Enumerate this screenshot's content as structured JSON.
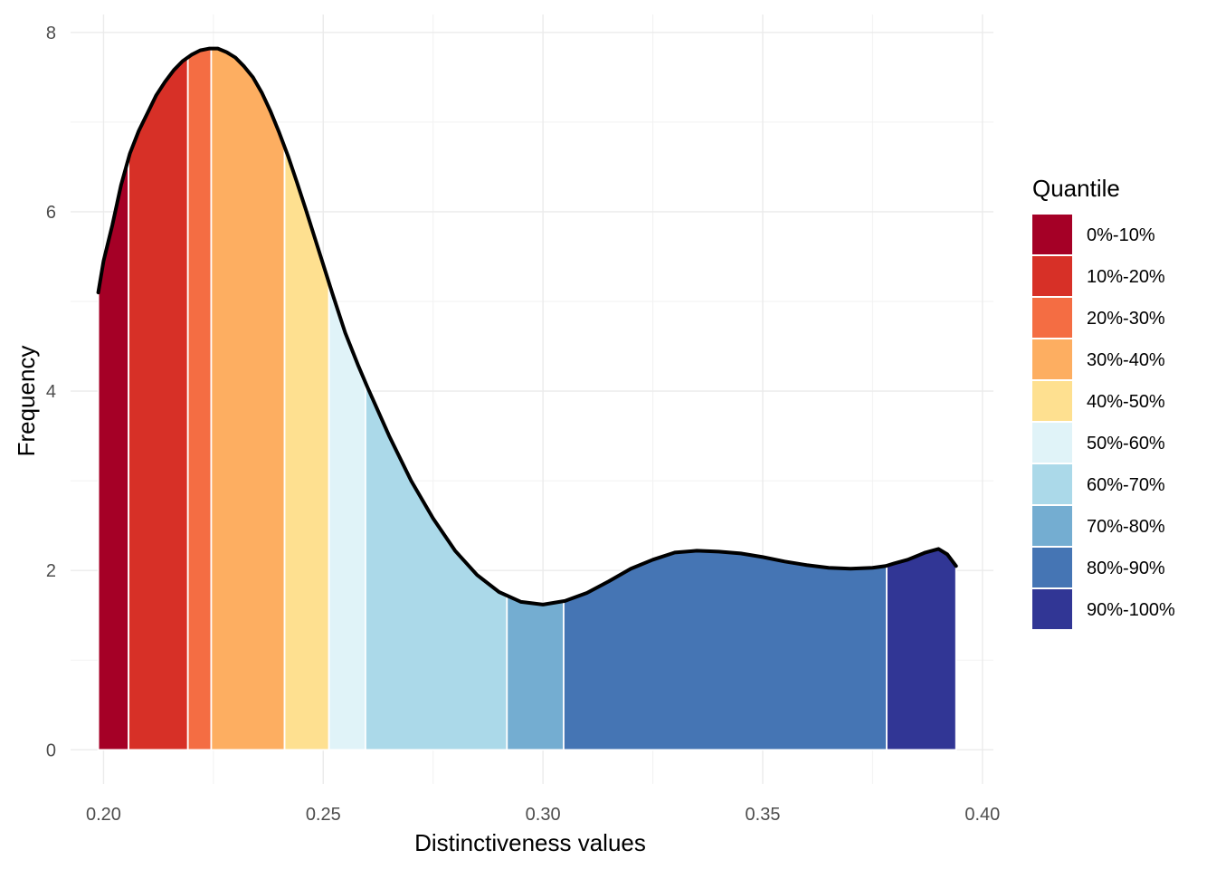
{
  "chart_data": {
    "type": "area",
    "title": "",
    "xlabel": "Distinctiveness values",
    "ylabel": "Frequency",
    "xlim": [
      0.1925,
      0.4025
    ],
    "ylim": [
      -0.38,
      8.2
    ],
    "x_ticks": [
      0.2,
      0.25,
      0.3,
      0.35,
      0.4
    ],
    "x_tick_labels": [
      "0.20",
      "0.25",
      "0.30",
      "0.35",
      "0.40"
    ],
    "y_ticks": [
      0,
      2,
      4,
      6,
      8
    ],
    "y_tick_labels": [
      "0",
      "2",
      "4",
      "6",
      "8"
    ],
    "grid": true,
    "legend_position": "right",
    "legend_title": "Quantile",
    "density_curve": {
      "x": [
        0.1988,
        0.2,
        0.202,
        0.204,
        0.206,
        0.208,
        0.21,
        0.212,
        0.214,
        0.216,
        0.218,
        0.22,
        0.222,
        0.224,
        0.226,
        0.228,
        0.23,
        0.232,
        0.234,
        0.236,
        0.238,
        0.24,
        0.242,
        0.244,
        0.246,
        0.248,
        0.25,
        0.252,
        0.255,
        0.258,
        0.26,
        0.265,
        0.27,
        0.275,
        0.28,
        0.285,
        0.29,
        0.295,
        0.3,
        0.305,
        0.31,
        0.315,
        0.32,
        0.325,
        0.33,
        0.335,
        0.34,
        0.345,
        0.35,
        0.355,
        0.36,
        0.365,
        0.37,
        0.375,
        0.378,
        0.38,
        0.383,
        0.385,
        0.387,
        0.39,
        0.392,
        0.394
      ],
      "y": [
        5.1,
        5.45,
        5.85,
        6.3,
        6.65,
        6.9,
        7.1,
        7.3,
        7.45,
        7.58,
        7.68,
        7.75,
        7.8,
        7.82,
        7.82,
        7.78,
        7.72,
        7.62,
        7.5,
        7.33,
        7.12,
        6.88,
        6.62,
        6.33,
        6.03,
        5.72,
        5.41,
        5.1,
        4.65,
        4.28,
        4.05,
        3.5,
        3.0,
        2.58,
        2.22,
        1.95,
        1.76,
        1.65,
        1.62,
        1.66,
        1.75,
        1.88,
        2.02,
        2.12,
        2.2,
        2.22,
        2.21,
        2.19,
        2.15,
        2.1,
        2.06,
        2.03,
        2.02,
        2.03,
        2.05,
        2.08,
        2.12,
        2.16,
        2.2,
        2.24,
        2.18,
        2.05
      ]
    },
    "quantile_breaks": [
      0.1988,
      0.2057,
      0.2192,
      0.2245,
      0.2412,
      0.2513,
      0.2596,
      0.2918,
      0.3047,
      0.3782,
      0.394
    ],
    "series": [
      {
        "name": "0%-10%",
        "color": "#a50026"
      },
      {
        "name": "10%-20%",
        "color": "#d73027"
      },
      {
        "name": "20%-30%",
        "color": "#f46d43"
      },
      {
        "name": "30%-40%",
        "color": "#fdae61"
      },
      {
        "name": "40%-50%",
        "color": "#fee090"
      },
      {
        "name": "50%-60%",
        "color": "#e0f3f8"
      },
      {
        "name": "60%-70%",
        "color": "#abd9e9"
      },
      {
        "name": "70%-80%",
        "color": "#74add1"
      },
      {
        "name": "80%-90%",
        "color": "#4575b4"
      },
      {
        "name": "90%-100%",
        "color": "#313695"
      }
    ]
  }
}
